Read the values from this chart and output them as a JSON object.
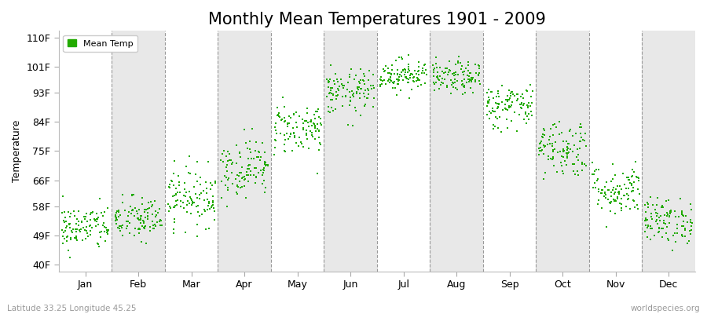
{
  "title": "Monthly Mean Temperatures 1901 - 2009",
  "ylabel": "Temperature",
  "yticks": [
    40,
    49,
    58,
    66,
    75,
    84,
    93,
    101,
    110
  ],
  "ytick_labels": [
    "40F",
    "49F",
    "58F",
    "66F",
    "75F",
    "84F",
    "93F",
    "101F",
    "110F"
  ],
  "ylim": [
    38,
    112
  ],
  "months": [
    "Jan",
    "Feb",
    "Mar",
    "Apr",
    "May",
    "Jun",
    "Jul",
    "Aug",
    "Sep",
    "Oct",
    "Nov",
    "Dec"
  ],
  "dot_color": "#22aa00",
  "dot_size": 2.5,
  "background_color": "#ffffff",
  "plot_bg_color": "#ffffff",
  "alt_bg_color": "#e8e8e8",
  "legend_label": "Mean Temp",
  "footnote_left": "Latitude 33.25 Longitude 45.25",
  "footnote_right": "worldspecies.org",
  "title_fontsize": 15,
  "label_fontsize": 9,
  "tick_fontsize": 9,
  "mean_temps_F": [
    51.5,
    54.0,
    61.0,
    70.0,
    82.0,
    93.0,
    98.5,
    97.5,
    89.0,
    76.0,
    63.0,
    53.5
  ],
  "std_devs_F": [
    3.5,
    3.5,
    4.5,
    4.5,
    4.0,
    3.5,
    2.5,
    2.5,
    3.5,
    4.5,
    4.0,
    3.5
  ],
  "n_years": 109,
  "seed": 42
}
